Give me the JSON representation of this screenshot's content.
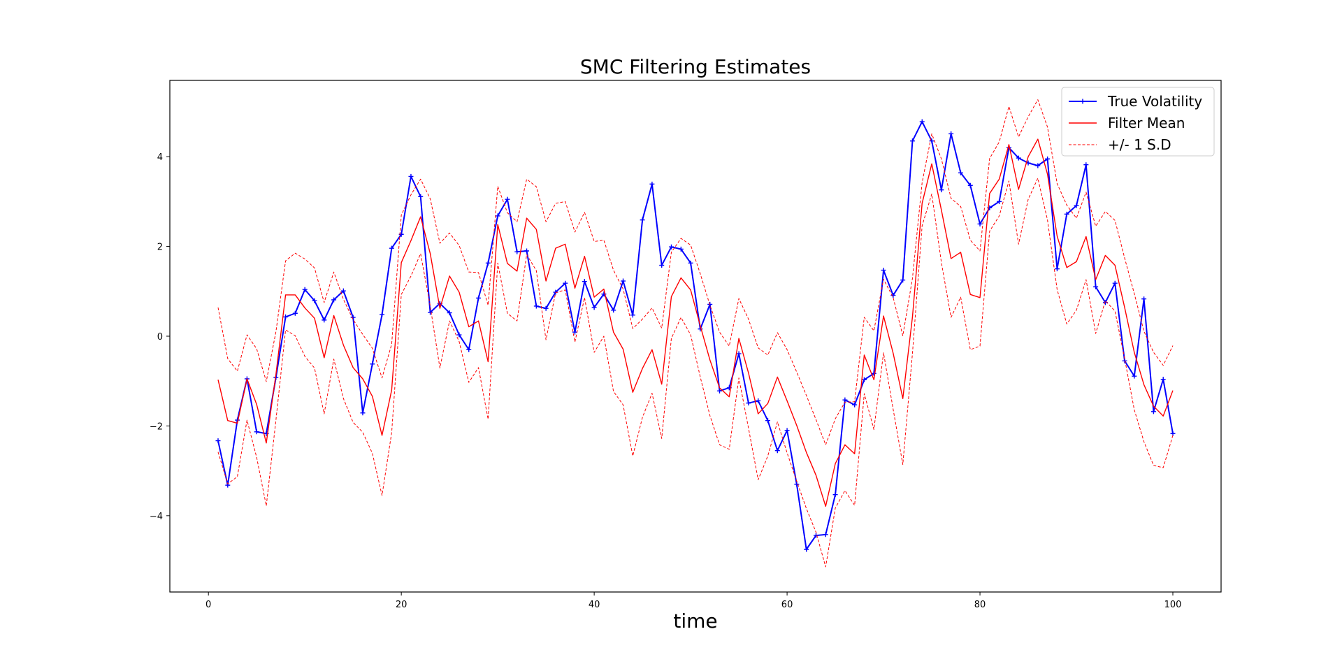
{
  "chart_data": {
    "type": "line",
    "title": "SMC Filtering Estimates",
    "xlabel": "time",
    "ylabel": "",
    "xlim": [
      -4,
      105
    ],
    "ylim": [
      -5.7,
      5.7
    ],
    "xticks": [
      0,
      20,
      40,
      60,
      80,
      100
    ],
    "yticks": [
      -4,
      -2,
      0,
      2,
      4
    ],
    "grid": false,
    "legend_position": "top-right",
    "x": [
      1,
      2,
      3,
      4,
      5,
      6,
      7,
      8,
      9,
      10,
      11,
      12,
      13,
      14,
      15,
      16,
      17,
      18,
      19,
      20,
      21,
      22,
      23,
      24,
      25,
      26,
      27,
      28,
      29,
      30,
      31,
      32,
      33,
      34,
      35,
      36,
      37,
      38,
      39,
      40,
      41,
      42,
      43,
      44,
      45,
      46,
      47,
      48,
      49,
      50,
      51,
      52,
      53,
      54,
      55,
      56,
      57,
      58,
      59,
      60,
      61,
      62,
      63,
      64,
      65,
      66,
      67,
      68,
      69,
      70,
      71,
      72,
      73,
      74,
      75,
      76,
      77,
      78,
      79,
      80,
      81,
      82,
      83,
      84,
      85,
      86,
      87,
      88,
      89,
      90,
      91,
      92,
      93,
      94,
      95,
      96,
      97,
      98,
      99,
      100
    ],
    "series": [
      {
        "name": "True Volatility",
        "color": "#0000ff",
        "style": "solid",
        "marker": "+",
        "values": [
          -2.33,
          -3.32,
          -1.87,
          -0.95,
          -2.13,
          -2.17,
          -0.92,
          0.43,
          0.51,
          1.04,
          0.79,
          0.36,
          0.81,
          1.01,
          0.42,
          -1.71,
          -0.62,
          0.48,
          1.96,
          2.27,
          3.56,
          3.11,
          0.53,
          0.73,
          0.52,
          0.03,
          -0.3,
          0.85,
          1.63,
          2.68,
          3.05,
          1.88,
          1.9,
          0.67,
          0.62,
          0.98,
          1.18,
          0.09,
          1.22,
          0.64,
          0.94,
          0.58,
          1.23,
          0.47,
          2.59,
          3.39,
          1.58,
          1.99,
          1.94,
          1.63,
          0.16,
          0.71,
          -1.22,
          -1.15,
          -0.39,
          -1.49,
          -1.44,
          -1.88,
          -2.55,
          -2.1,
          -3.3,
          -4.75,
          -4.44,
          -4.42,
          -3.53,
          -1.42,
          -1.53,
          -0.97,
          -0.83,
          1.47,
          0.91,
          1.25,
          4.35,
          4.78,
          4.35,
          3.26,
          4.51,
          3.64,
          3.36,
          2.5,
          2.86,
          3,
          4.2,
          3.97,
          3.86,
          3.8,
          3.95,
          1.5,
          2.72,
          2.91,
          3.82,
          1.1,
          0.75,
          1.18,
          -0.55,
          -0.89,
          0.83,
          -1.68,
          -0.96,
          -2.17
        ]
      },
      {
        "name": "Filter Mean",
        "color": "#ff0000",
        "style": "solid",
        "marker": "",
        "values": [
          -0.97,
          -1.88,
          -1.94,
          -0.95,
          -1.52,
          -2.38,
          -0.85,
          0.92,
          0.92,
          0.63,
          0.4,
          -0.48,
          0.46,
          -0.2,
          -0.7,
          -0.95,
          -1.34,
          -2.21,
          -1.2,
          1.64,
          2.13,
          2.66,
          1.84,
          0.62,
          1.34,
          0.98,
          0.21,
          0.34,
          -0.57,
          2.49,
          1.62,
          1.45,
          2.63,
          2.38,
          1.23,
          1.96,
          2.05,
          1.07,
          1.78,
          0.87,
          1.05,
          0.09,
          -0.29,
          -1.25,
          -0.72,
          -0.3,
          -1.07,
          0.88,
          1.3,
          1.03,
          0.23,
          -0.53,
          -1.15,
          -1.35,
          -0.05,
          -0.82,
          -1.73,
          -1.5,
          -0.91,
          -1.44,
          -1.99,
          -2.59,
          -3.1,
          -3.79,
          -2.84,
          -2.42,
          -2.62,
          -0.42,
          -0.97,
          0.45,
          -0.38,
          -1.39,
          0.43,
          2.96,
          3.84,
          2.81,
          1.73,
          1.87,
          0.93,
          0.86,
          3.18,
          3.5,
          4.27,
          3.27,
          4,
          4.39,
          3.61,
          2.23,
          1.53,
          1.66,
          2.22,
          1.26,
          1.8,
          1.58,
          0.64,
          -0.36,
          -1.08,
          -1.56,
          -1.78,
          -1.21
        ]
      },
      {
        "name": "+/- 1 S.D",
        "color": "#ff0000",
        "style": "dashed",
        "marker": "",
        "values": [
          0.64,
          -0.5,
          -0.78,
          0.03,
          -0.28,
          -1.01,
          0.1,
          1.68,
          1.85,
          1.72,
          1.52,
          0.75,
          1.43,
          0.82,
          0.37,
          0.04,
          -0.27,
          -0.93,
          -0.18,
          2.7,
          3.15,
          3.5,
          3.06,
          2.07,
          2.3,
          2.02,
          1.43,
          1.42,
          0.69,
          3.34,
          2.75,
          2.55,
          3.5,
          3.33,
          2.55,
          2.96,
          3,
          2.32,
          2.76,
          2.11,
          2.14,
          1.47,
          1.05,
          0.17,
          0.38,
          0.63,
          0.18,
          1.87,
          2.18,
          2.03,
          1.39,
          0.69,
          0.09,
          -0.22,
          0.84,
          0.38,
          -0.26,
          -0.42,
          0.08,
          -0.3,
          -0.8,
          -1.32,
          -1.86,
          -2.42,
          -1.84,
          -1.47,
          -1.46,
          0.42,
          0.12,
          1.27,
          0.86,
          0.01,
          1.29,
          3.42,
          4.51,
          3.95,
          3.07,
          2.89,
          2.14,
          1.9,
          3.96,
          4.33,
          5.12,
          4.44,
          4.89,
          5.27,
          4.66,
          3.4,
          2.92,
          2.63,
          3.21,
          2.45,
          2.78,
          2.58,
          1.74,
          0.95,
          0.11,
          -0.36,
          -0.65,
          -0.21
        ]
      },
      {
        "name": "",
        "color": "#ff0000",
        "style": "dashed",
        "marker": "",
        "values": [
          -2.58,
          -3.29,
          -3.13,
          -1.87,
          -2.7,
          -3.78,
          -1.87,
          0.14,
          0.01,
          -0.45,
          -0.71,
          -1.73,
          -0.51,
          -1.39,
          -1.92,
          -2.14,
          -2.61,
          -3.55,
          -2.15,
          0.93,
          1.34,
          1.84,
          0.67,
          -0.71,
          0.34,
          -0.12,
          -1.03,
          -0.7,
          -1.85,
          1.63,
          0.51,
          0.34,
          1.82,
          1.46,
          -0.08,
          0.97,
          1.03,
          -0.13,
          0.86,
          -0.36,
          0,
          -1.23,
          -1.53,
          -2.67,
          -1.81,
          -1.27,
          -2.28,
          -0.05,
          0.42,
          0.03,
          -0.91,
          -1.77,
          -2.42,
          -2.52,
          -0.93,
          -2.05,
          -3.2,
          -2.67,
          -1.91,
          -2.6,
          -3.23,
          -3.84,
          -4.37,
          -5.14,
          -3.83,
          -3.44,
          -3.77,
          -1.28,
          -2.08,
          -0.37,
          -1.63,
          -2.86,
          -0.38,
          2.46,
          3.17,
          1.64,
          0.42,
          0.87,
          -0.3,
          -0.22,
          2.34,
          2.68,
          3.46,
          2.05,
          3.05,
          3.52,
          2.59,
          1.04,
          0.27,
          0.58,
          1.26,
          0.06,
          0.79,
          0.56,
          -0.5,
          -1.64,
          -2.35,
          -2.88,
          -2.93,
          -2.21
        ]
      }
    ],
    "legend": [
      {
        "label": "True Volatility",
        "color": "#0000ff",
        "style": "solid",
        "marker": "+"
      },
      {
        "label": "Filter Mean",
        "color": "#ff0000",
        "style": "solid",
        "marker": ""
      },
      {
        "label": "+/- 1 S.D",
        "color": "#ff0000",
        "style": "dashed",
        "marker": ""
      }
    ]
  }
}
